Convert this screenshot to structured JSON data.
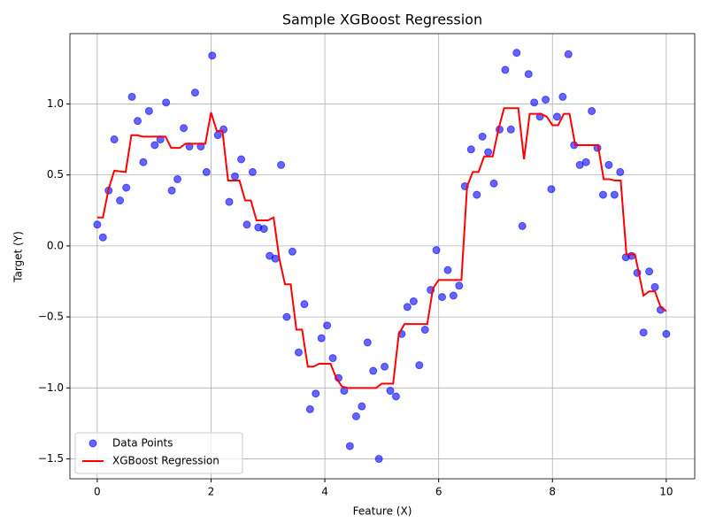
{
  "chart_data": {
    "type": "scatter",
    "title": "Sample XGBoost Regression",
    "x_label": "Feature (X)",
    "y_label": "Target (Y)",
    "xlim": [
      -0.48,
      10.5
    ],
    "ylim": [
      -1.64,
      1.495
    ],
    "xticks": [
      0,
      2,
      4,
      6,
      8,
      10
    ],
    "yticks": [
      {
        "value": -1.5,
        "label": "−1.5"
      },
      {
        "value": -1.0,
        "label": "−1.0"
      },
      {
        "value": -0.5,
        "label": "−0.5"
      },
      {
        "value": 0.0,
        "label": "0.0"
      },
      {
        "value": 0.5,
        "label": "0.5"
      },
      {
        "value": 1.0,
        "label": "1.0"
      }
    ],
    "grid": true,
    "legend": "lower left",
    "series": [
      {
        "name": "Data Points",
        "type": "scatter",
        "color": "#0000ff",
        "x": [
          0,
          0.1,
          0.2,
          0.3,
          0.4,
          0.51,
          0.61,
          0.71,
          0.81,
          0.91,
          1.01,
          1.11,
          1.21,
          1.31,
          1.41,
          1.52,
          1.62,
          1.72,
          1.82,
          1.92,
          2.02,
          2.12,
          2.22,
          2.32,
          2.42,
          2.53,
          2.63,
          2.73,
          2.83,
          2.93,
          3.03,
          3.13,
          3.23,
          3.33,
          3.43,
          3.54,
          3.64,
          3.74,
          3.84,
          3.94,
          4.04,
          4.14,
          4.24,
          4.34,
          4.44,
          4.55,
          4.65,
          4.75,
          4.85,
          4.95,
          5.05,
          5.15,
          5.25,
          5.35,
          5.45,
          5.56,
          5.66,
          5.76,
          5.86,
          5.96,
          6.06,
          6.16,
          6.26,
          6.36,
          6.46,
          6.57,
          6.67,
          6.77,
          6.87,
          6.97,
          7.07,
          7.17,
          7.27,
          7.37,
          7.47,
          7.58,
          7.68,
          7.78,
          7.88,
          7.98,
          8.08,
          8.18,
          8.28,
          8.38,
          8.48,
          8.59,
          8.69,
          8.79,
          8.89,
          8.99,
          9.09,
          9.19,
          9.29,
          9.39,
          9.49,
          9.6,
          9.7,
          9.8,
          9.9,
          10
        ],
        "values": [
          0.15,
          0.06,
          0.39,
          0.75,
          0.32,
          0.41,
          1.05,
          0.88,
          0.59,
          0.95,
          0.71,
          0.75,
          1.01,
          0.39,
          0.47,
          0.83,
          0.7,
          1.08,
          0.7,
          0.52,
          1.34,
          0.78,
          0.82,
          0.31,
          0.49,
          0.61,
          0.15,
          0.52,
          0.13,
          0.12,
          -0.07,
          -0.09,
          0.57,
          -0.5,
          -0.04,
          -0.75,
          -0.41,
          -1.15,
          -1.04,
          -0.65,
          -0.56,
          -0.79,
          -0.93,
          -1.02,
          -1.41,
          -1.2,
          -1.13,
          -0.68,
          -0.88,
          -1.5,
          -0.85,
          -1.02,
          -1.06,
          -0.62,
          -0.43,
          -0.39,
          -0.84,
          -0.59,
          -0.31,
          -0.03,
          -0.36,
          -0.17,
          -0.35,
          -0.28,
          0.42,
          0.68,
          0.36,
          0.77,
          0.66,
          0.44,
          0.82,
          1.24,
          0.82,
          1.36,
          0.14,
          1.21,
          1.01,
          0.91,
          1.03,
          0.4,
          0.91,
          1.05,
          1.35,
          0.71,
          0.57,
          0.59,
          0.95,
          0.69,
          0.36,
          0.57,
          0.36,
          0.52,
          -0.08,
          -0.07,
          -0.19,
          -0.61,
          -0.18,
          -0.29,
          -0.45,
          -0.62
        ]
      },
      {
        "name": "XGBoost Regression",
        "type": "line",
        "color": "#ff0000",
        "x": [
          0,
          0.1,
          0.2,
          0.3,
          0.5,
          0.6,
          0.7,
          0.8,
          1.2,
          1.3,
          1.45,
          1.55,
          1.9,
          2.0,
          2.1,
          2.2,
          2.3,
          2.5,
          2.6,
          2.7,
          2.8,
          3.0,
          3.1,
          3.2,
          3.3,
          3.4,
          3.5,
          3.6,
          3.7,
          3.8,
          3.9,
          4.1,
          4.2,
          4.3,
          4.4,
          4.9,
          5.0,
          5.2,
          5.3,
          5.4,
          5.8,
          5.9,
          6.0,
          6.4,
          6.5,
          6.6,
          6.7,
          6.8,
          6.95,
          7.05,
          7.15,
          7.4,
          7.5,
          7.6,
          7.8,
          7.9,
          8.0,
          8.1,
          8.2,
          8.3,
          8.4,
          8.8,
          8.9,
          9.0,
          9.1,
          9.2,
          9.3,
          9.45,
          9.6,
          9.7,
          9.8,
          9.9,
          10
        ],
        "values": [
          0.2,
          0.2,
          0.4,
          0.53,
          0.52,
          0.78,
          0.78,
          0.77,
          0.77,
          0.69,
          0.69,
          0.72,
          0.72,
          0.94,
          0.81,
          0.81,
          0.46,
          0.46,
          0.32,
          0.32,
          0.18,
          0.18,
          0.2,
          -0.09,
          -0.27,
          -0.27,
          -0.59,
          -0.59,
          -0.85,
          -0.85,
          -0.83,
          -0.83,
          -0.93,
          -0.99,
          -1.0,
          -1.0,
          -0.97,
          -0.97,
          -0.62,
          -0.55,
          -0.55,
          -0.3,
          -0.24,
          -0.24,
          0.42,
          0.52,
          0.52,
          0.63,
          0.63,
          0.82,
          0.97,
          0.97,
          0.61,
          0.93,
          0.93,
          0.91,
          0.85,
          0.85,
          0.93,
          0.93,
          0.71,
          0.71,
          0.47,
          0.47,
          0.46,
          0.46,
          -0.06,
          -0.06,
          -0.35,
          -0.32,
          -0.32,
          -0.43,
          -0.46
        ]
      }
    ]
  }
}
